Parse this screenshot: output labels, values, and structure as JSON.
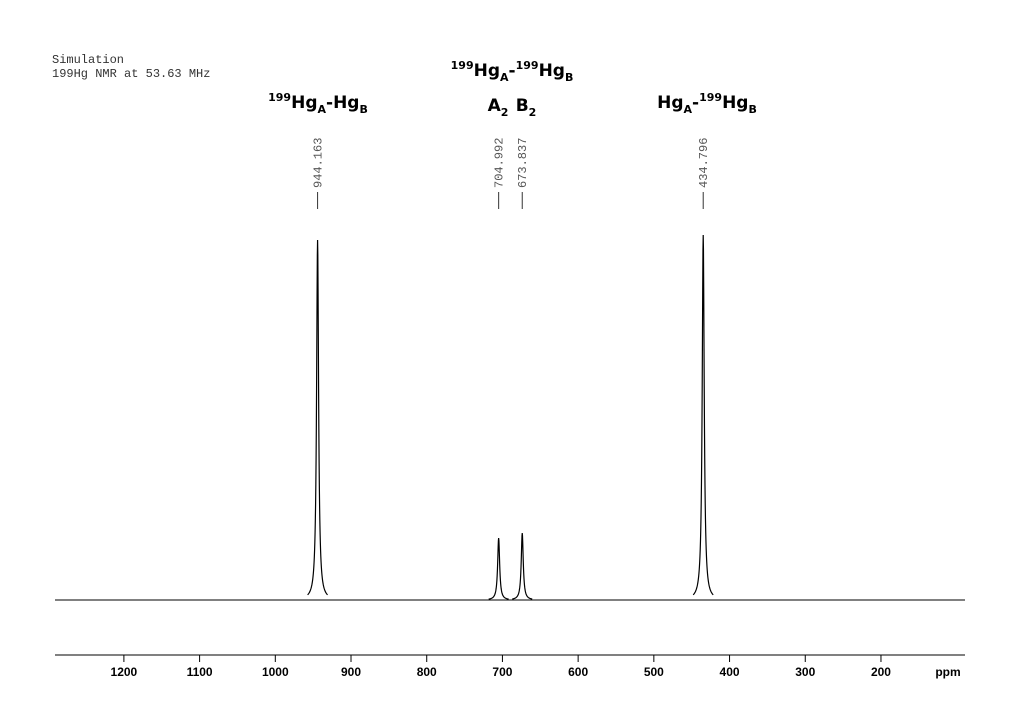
{
  "chart_data": {
    "type": "line",
    "header": [
      "Simulation",
      "199Hg NMR at 53.63 MHz"
    ],
    "x_label": "ppm",
    "xlim": [
      1291,
      89
    ],
    "xticks": [
      1200,
      1100,
      1000,
      900,
      800,
      700,
      600,
      500,
      400,
      300,
      200
    ],
    "ylim": [
      0,
      380
    ],
    "series": [
      {
        "color": "#000000",
        "x": [
          944.163,
          704.992,
          673.837,
          434.796
        ],
        "values": [
          360,
          62,
          67,
          365
        ]
      }
    ],
    "annotations": [
      {
        "spans": [
          {
            "text": "199",
            "style": "sup"
          },
          {
            "text": "Hg"
          },
          {
            "text": "A",
            "style": "sub"
          },
          {
            "text": "-Hg"
          },
          {
            "text": "B",
            "style": "sub"
          }
        ]
      },
      {
        "spans": [
          {
            "text": "199",
            "style": "sup"
          },
          {
            "text": "Hg"
          },
          {
            "text": "A",
            "style": "sub"
          },
          {
            "text": "-"
          },
          {
            "text": "199",
            "style": "sup"
          },
          {
            "text": "Hg"
          },
          {
            "text": "B",
            "style": "sub"
          }
        ]
      },
      {
        "spans": [
          {
            "text": "A"
          },
          {
            "text": "2",
            "style": "sub"
          }
        ]
      },
      {
        "spans": [
          {
            "text": "B"
          },
          {
            "text": "2",
            "style": "sub"
          }
        ]
      },
      {
        "spans": [
          {
            "text": "Hg"
          },
          {
            "text": "A",
            "style": "sub"
          },
          {
            "text": "-"
          },
          {
            "text": "199",
            "style": "sup"
          },
          {
            "text": "Hg"
          },
          {
            "text": "B",
            "style": "sub"
          }
        ]
      }
    ]
  }
}
